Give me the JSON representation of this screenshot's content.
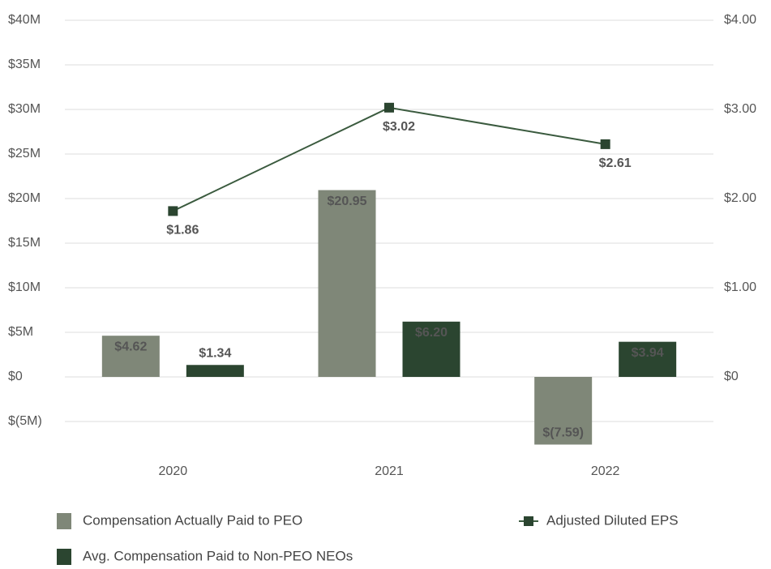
{
  "chart_data": {
    "type": "bar",
    "categories": [
      "2020",
      "2021",
      "2022"
    ],
    "series": [
      {
        "name": "Compensation Actually Paid to PEO",
        "color": "#7f8778",
        "values": [
          4.62,
          20.95,
          -7.59
        ],
        "value_labels": [
          "$4.62",
          "$20.95",
          "$(7.59)"
        ]
      },
      {
        "name": "Avg. Compensation Paid to Non-PEO NEOs",
        "color": "#2b4530",
        "values": [
          1.34,
          6.2,
          3.94
        ],
        "value_labels": [
          "$1.34",
          "$6.20",
          "$3.94"
        ]
      },
      {
        "name": "Adjusted Diluted EPS",
        "type": "line",
        "axis": "y2",
        "color": "#3a5a3e",
        "values": [
          1.86,
          3.02,
          2.61
        ],
        "value_labels": [
          "$1.86",
          "$3.02",
          "$2.61"
        ]
      }
    ],
    "ylim": [
      -8,
      40
    ],
    "yticks": [
      {
        "value": -5,
        "label": "$(5M)"
      },
      {
        "value": 0,
        "label": "$0"
      },
      {
        "value": 5,
        "label": "$5M"
      },
      {
        "value": 10,
        "label": "$10M"
      },
      {
        "value": 15,
        "label": "$15M"
      },
      {
        "value": 20,
        "label": "$20M"
      },
      {
        "value": 25,
        "label": "$25M"
      },
      {
        "value": 30,
        "label": "$30M"
      },
      {
        "value": 35,
        "label": "$35M"
      },
      {
        "value": 40,
        "label": "$40M"
      }
    ],
    "y2lim": [
      -0.8,
      4.0
    ],
    "y2ticks": [
      {
        "value": 0,
        "label": "$0"
      },
      {
        "value": 1,
        "label": "$1.00"
      },
      {
        "value": 2,
        "label": "$2.00"
      },
      {
        "value": 3,
        "label": "$3.00"
      },
      {
        "value": 4,
        "label": "$4.00"
      }
    ],
    "grid": true
  }
}
